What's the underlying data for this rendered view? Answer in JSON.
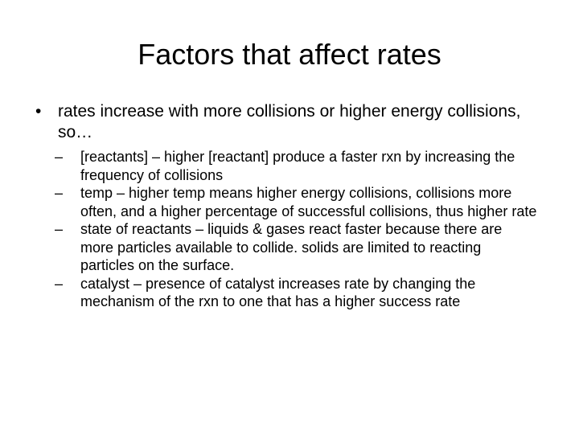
{
  "title": "Factors that affect rates",
  "bullets": [
    {
      "text": "rates increase with more collisions or higher energy collisions, so…",
      "sub_bullets": [
        "[reactants] – higher [reactant] produce a faster rxn by increasing the frequency of collisions",
        "temp – higher temp means higher energy collisions, collisions more often, and a higher percentage of successful collisions, thus higher rate",
        "state of reactants – liquids & gases react faster because there are more particles available to collide.  solids are limited to reacting particles on the surface.",
        "catalyst – presence of catalyst increases rate by changing the mechanism of the rxn to one that has a higher success rate"
      ]
    }
  ]
}
